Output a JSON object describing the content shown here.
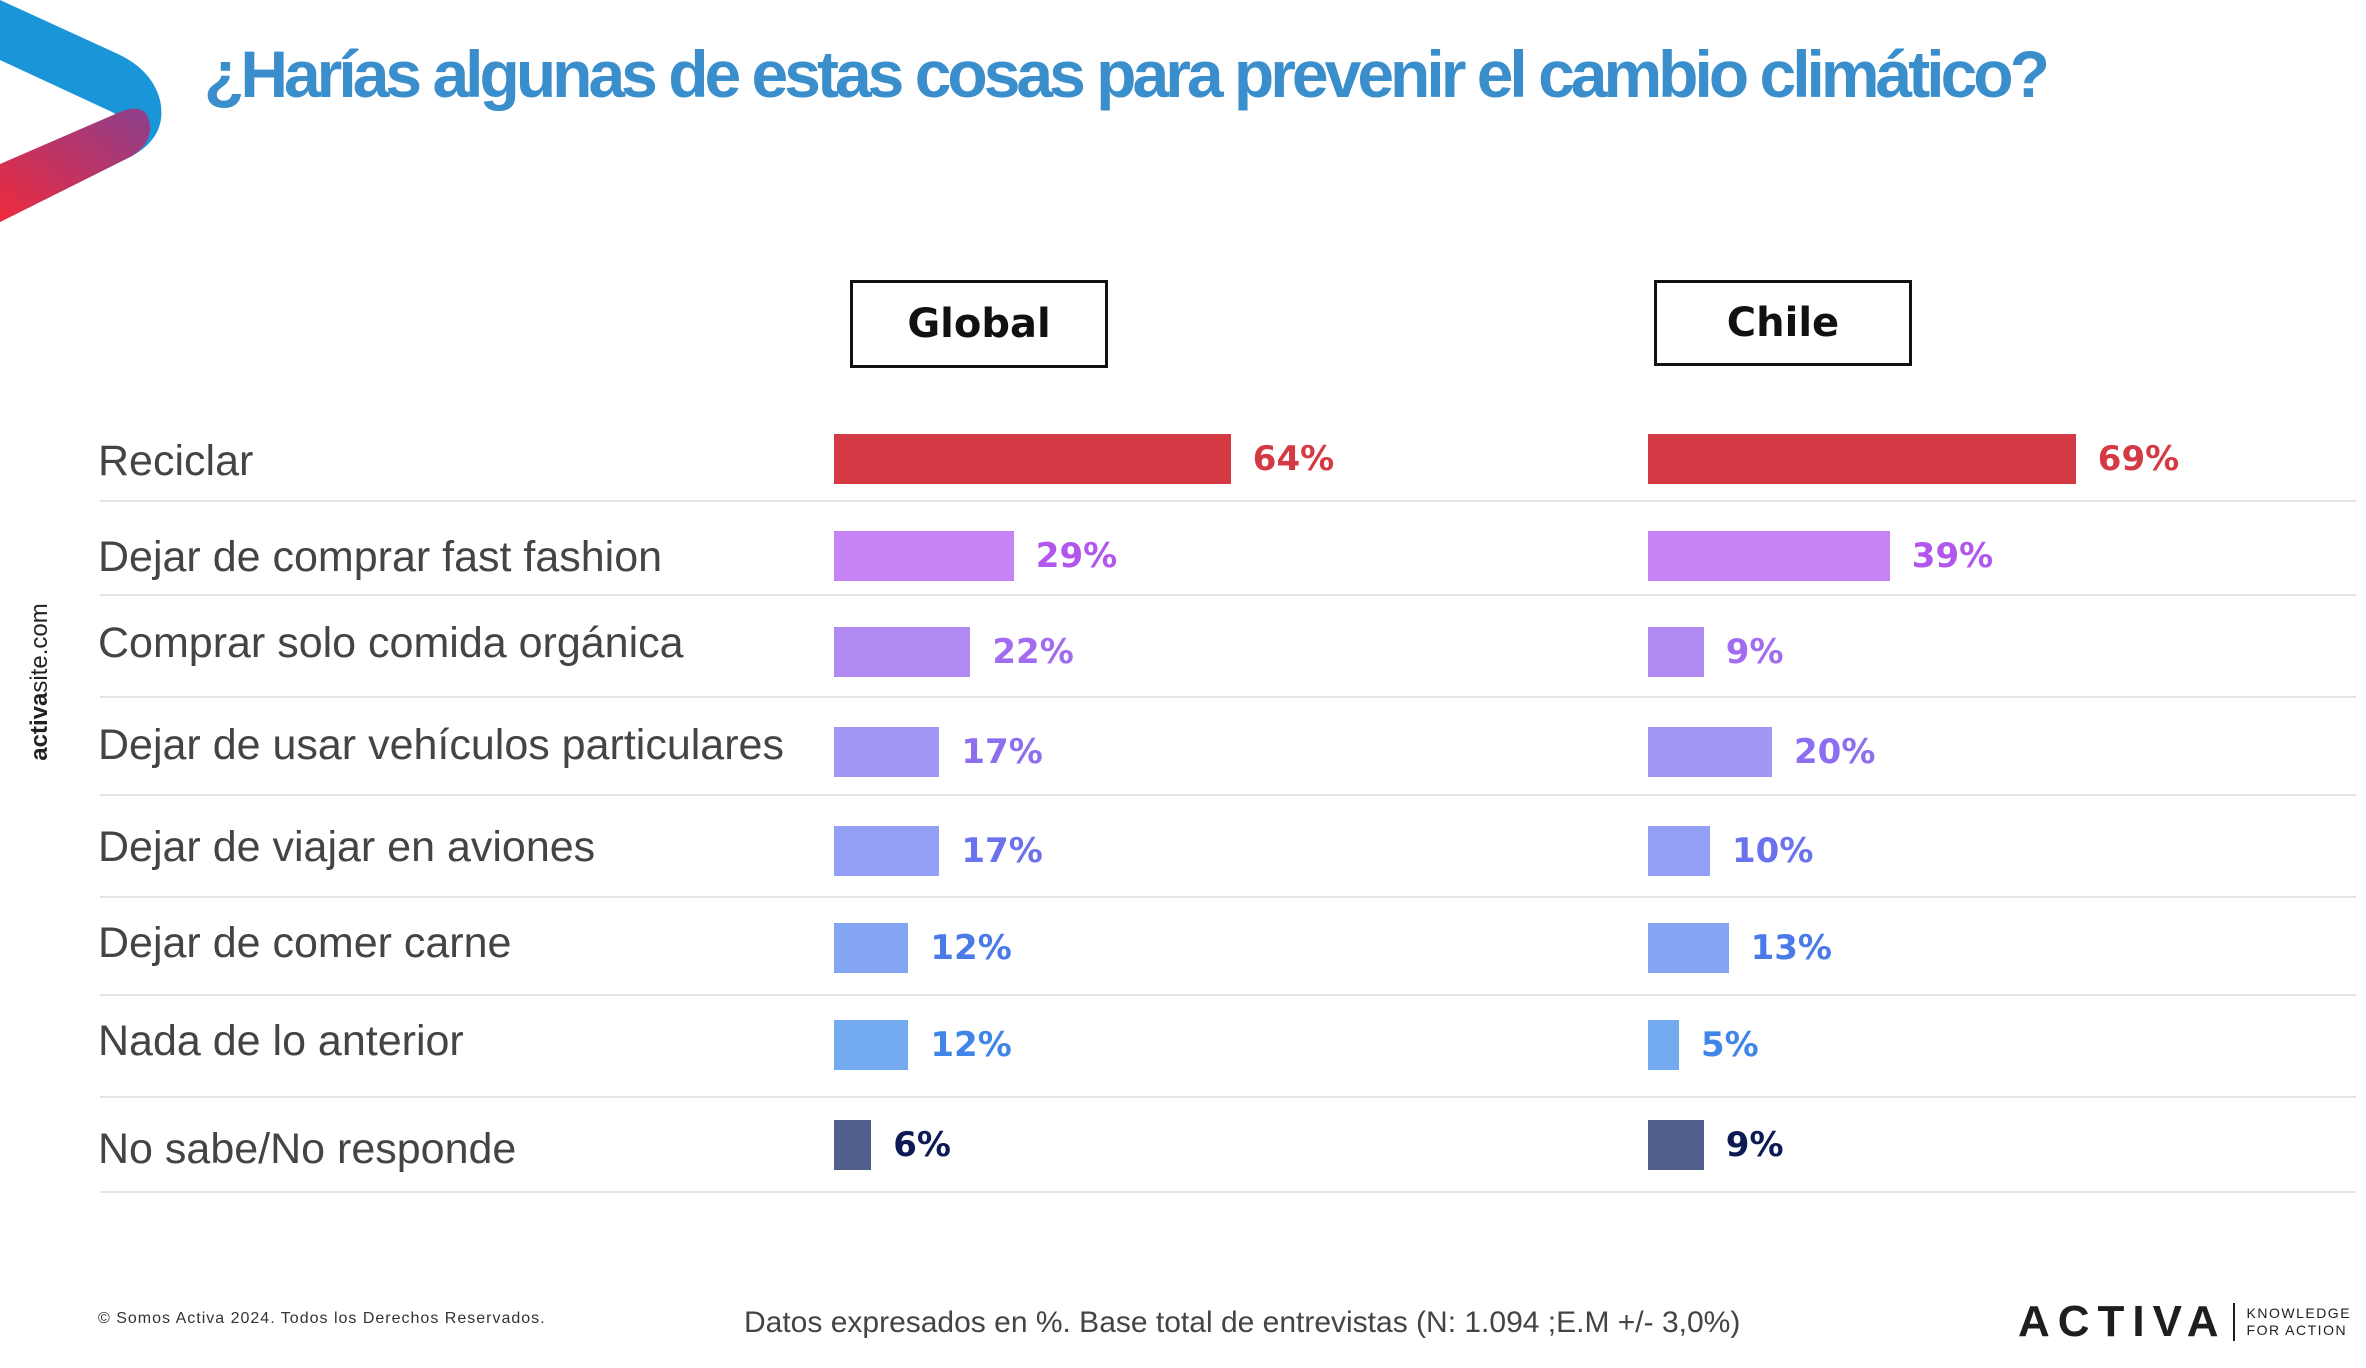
{
  "header": {
    "title": "¿Harías algunas de estas cosas para prevenir el cambio climático?",
    "title_color": "#3a8ecb"
  },
  "sidebar": {
    "url_bold": "activa",
    "url_rest": "site.com"
  },
  "chart_data": {
    "type": "bar",
    "orientation": "horizontal",
    "title": "¿Harías algunas de estas cosas para prevenir el cambio climático?",
    "unit": "%",
    "categories": [
      "Reciclar",
      "Dejar de comprar fast fashion",
      "Comprar solo comida orgánica",
      "Dejar de usar vehículos particulares",
      "Dejar de viajar en aviones",
      "Dejar de comer carne",
      "Nada de lo anterior",
      "No sabe/No responde"
    ],
    "series": [
      {
        "name": "Global",
        "values": [
          64,
          29,
          22,
          17,
          17,
          12,
          12,
          6
        ]
      },
      {
        "name": "Chile",
        "values": [
          69,
          39,
          9,
          20,
          10,
          13,
          5,
          9
        ]
      }
    ],
    "bar_colors": [
      "#d43a44",
      "#c583f4",
      "#b18af4",
      "#a297f4",
      "#94a0f5",
      "#84a6f2",
      "#73aaf0",
      "#505f8c"
    ],
    "label_colors": [
      "#d43a44",
      "#b157ee",
      "#a26cf0",
      "#8e6ef0",
      "#6a72ee",
      "#4a7ae8",
      "#3f86e8",
      "#0d1a55"
    ],
    "grid": false,
    "legend": "none"
  },
  "footer": {
    "copyright": "© Somos Activa 2024. Todos los Derechos Reservados.",
    "note": "Datos expresados en %. Base total de entrevistas (N: 1.094 ;E.M +/- 3,0%)",
    "brand": "ACTIVA",
    "tagline": [
      "KNOWLEDGE",
      "FOR ACTION"
    ]
  }
}
